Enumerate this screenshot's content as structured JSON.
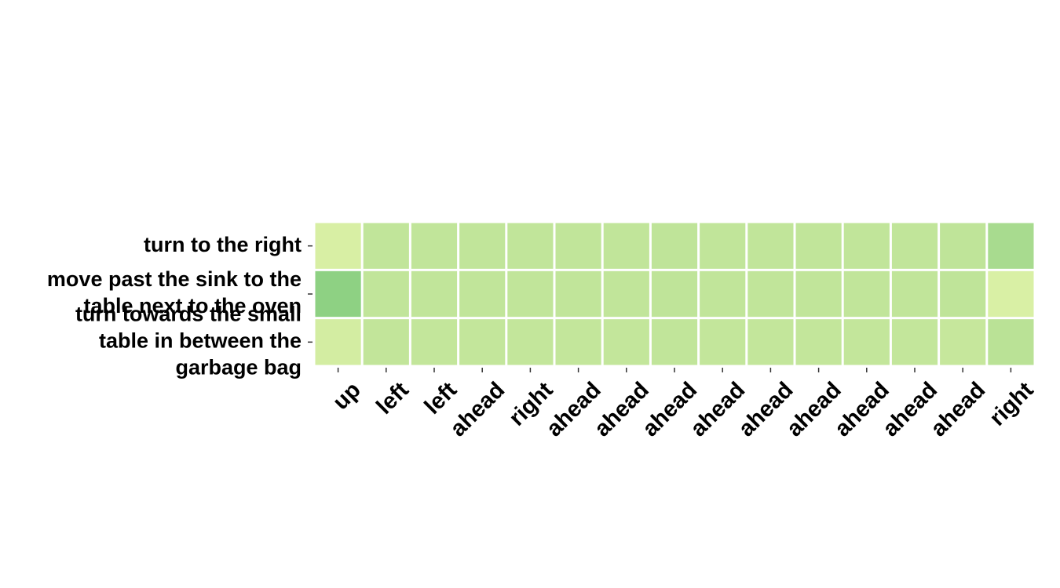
{
  "chart_data": {
    "type": "heatmap",
    "title": "",
    "xlabel": "",
    "ylabel": "",
    "x_labels": [
      "up",
      "left",
      "left",
      "ahead",
      "right",
      "ahead",
      "ahead",
      "ahead",
      "ahead",
      "ahead",
      "ahead",
      "ahead",
      "ahead",
      "ahead",
      "right"
    ],
    "y_labels": [
      [
        "turn to the right"
      ],
      [
        "move past the sink to the",
        "table next to the oven"
      ],
      [
        "turn towards the small",
        "table in between the",
        "garbage bag"
      ]
    ],
    "values": [
      [
        0.08,
        0.3,
        0.3,
        0.3,
        0.3,
        0.3,
        0.3,
        0.31,
        0.3,
        0.3,
        0.3,
        0.3,
        0.3,
        0.31,
        0.5
      ],
      [
        0.7,
        0.3,
        0.3,
        0.3,
        0.3,
        0.3,
        0.3,
        0.31,
        0.3,
        0.3,
        0.3,
        0.3,
        0.3,
        0.31,
        0.07
      ],
      [
        0.12,
        0.29,
        0.28,
        0.28,
        0.28,
        0.28,
        0.28,
        0.3,
        0.28,
        0.28,
        0.28,
        0.28,
        0.28,
        0.25,
        0.36
      ]
    ],
    "colormap": [
      "#e0f3a8",
      "#bde398",
      "#93d385",
      "#62bb6d"
    ],
    "value_range": [
      0,
      1
    ],
    "grid": false,
    "colorbar": false
  }
}
